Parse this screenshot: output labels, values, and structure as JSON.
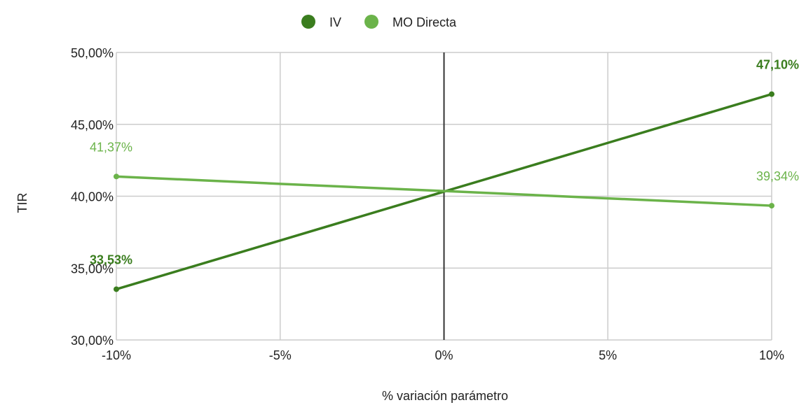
{
  "chart_data": {
    "type": "line",
    "xlabel": "% variación parámetro",
    "ylabel": "TIR",
    "x": [
      -10,
      -5,
      0,
      5,
      10
    ],
    "x_tick_labels": [
      "-10%",
      "-5%",
      "0%",
      "5%",
      "10%"
    ],
    "xlim": [
      -10,
      10
    ],
    "y_ticks": [
      30,
      35,
      40,
      45,
      50
    ],
    "y_tick_labels": [
      "30,00%",
      "35,00%",
      "40,00%",
      "45,00%",
      "50,00%"
    ],
    "ylim": [
      30,
      50
    ],
    "grid": true,
    "legend_position": "top-center",
    "series": [
      {
        "name": "IV",
        "color": "#3a7d1e",
        "bold_labels": true,
        "points": [
          [
            -10,
            33.53
          ],
          [
            10,
            47.1
          ]
        ],
        "point_labels": [
          "33,53%",
          "47,10%"
        ],
        "line_values": [
          33.53,
          36.92,
          40.32,
          43.71,
          47.1
        ]
      },
      {
        "name": "MO Directa",
        "color": "#6bb34a",
        "bold_labels": false,
        "points": [
          [
            -10,
            41.37
          ],
          [
            10,
            39.34
          ]
        ],
        "point_labels": [
          "41,37%",
          "39,34%"
        ],
        "line_values": [
          41.37,
          40.86,
          40.36,
          39.85,
          39.34
        ]
      }
    ]
  }
}
